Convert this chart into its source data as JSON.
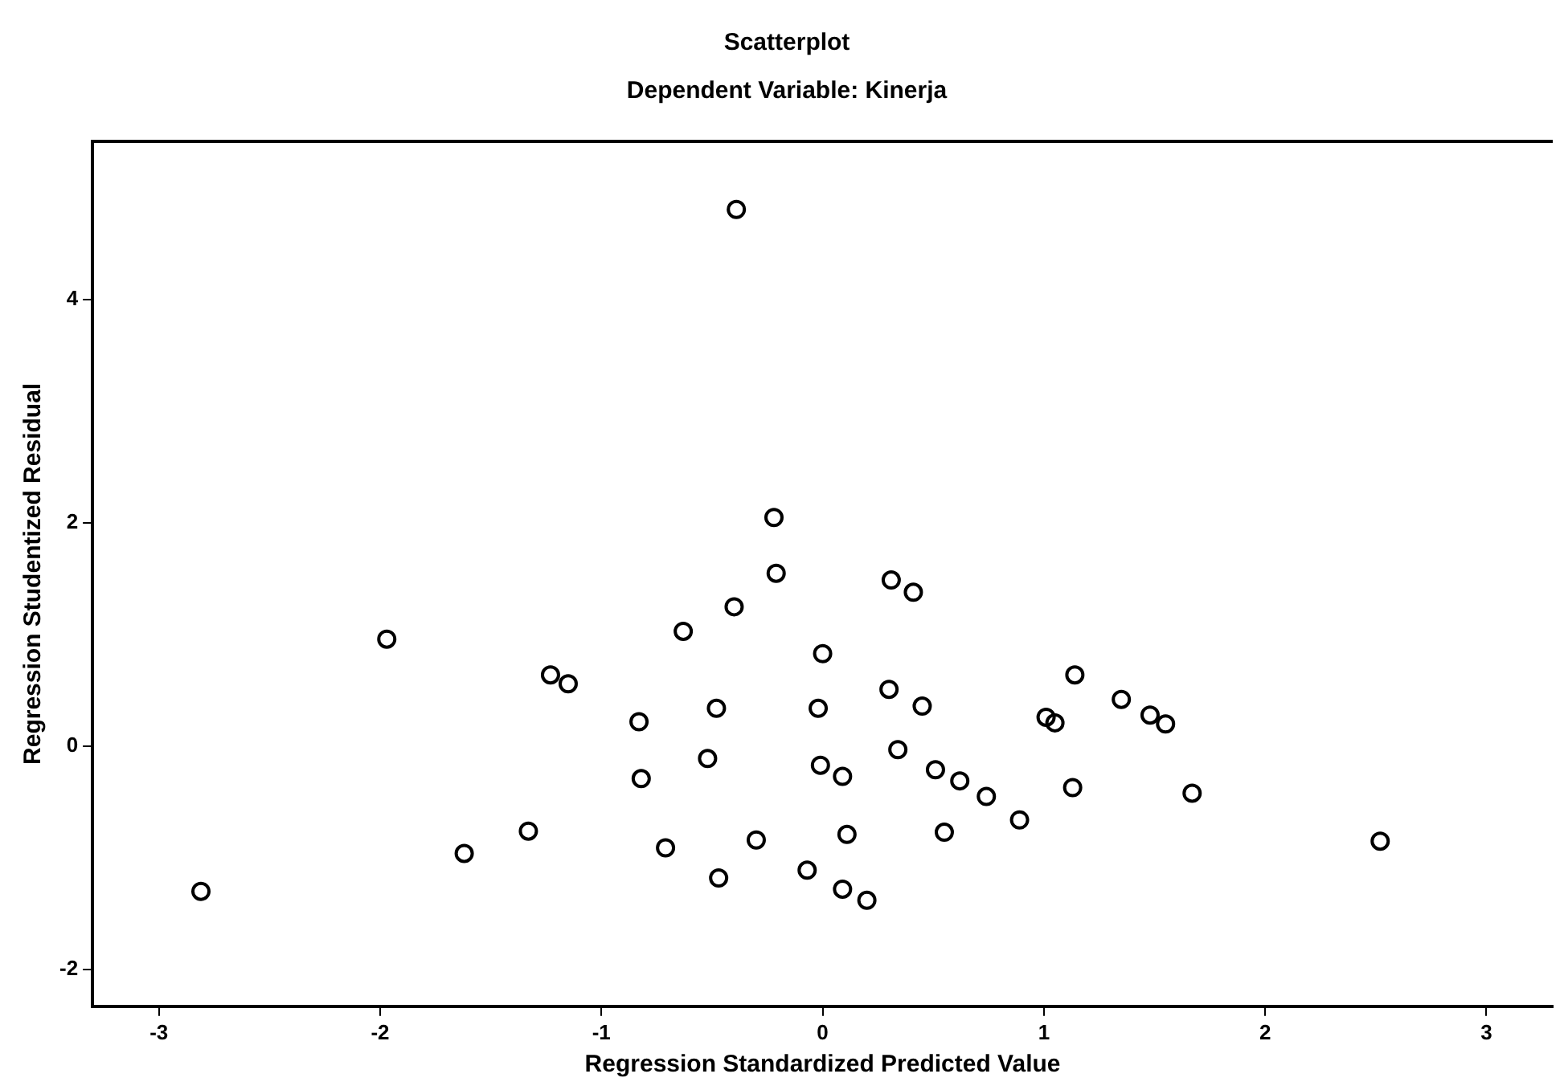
{
  "chart_data": {
    "type": "scatter",
    "title": "Scatterplot",
    "subtitle": "Dependent Variable: Kinerja",
    "xlabel": "Regression Standardized Predicted Value",
    "ylabel": "Regression Studentized Residual",
    "x": [
      -2.81,
      -1.97,
      -1.62,
      -1.33,
      -1.23,
      -1.15,
      -0.83,
      -0.82,
      -0.71,
      -0.63,
      -0.48,
      -0.52,
      -0.47,
      -0.4,
      -0.3,
      -0.21,
      -0.39,
      -0.22,
      0.0,
      0.31,
      0.41,
      -0.02,
      0.3,
      0.45,
      0.34,
      -0.01,
      0.09,
      0.51,
      0.62,
      0.74,
      0.89,
      0.55,
      0.11,
      -0.07,
      0.09,
      0.2,
      1.14,
      1.01,
      1.05,
      1.35,
      1.48,
      1.55,
      1.13,
      1.67,
      2.52
    ],
    "values": [
      -1.3,
      0.96,
      -0.96,
      -0.76,
      0.64,
      0.56,
      0.22,
      -0.29,
      -0.91,
      1.03,
      0.34,
      -0.11,
      -1.18,
      1.25,
      -0.84,
      1.55,
      4.81,
      2.05,
      0.83,
      1.49,
      1.38,
      0.34,
      0.51,
      0.36,
      -0.03,
      -0.17,
      -0.27,
      -0.21,
      -0.31,
      -0.45,
      -0.66,
      -0.77,
      -0.79,
      -1.11,
      -1.28,
      -1.38,
      0.64,
      0.26,
      0.21,
      0.42,
      0.28,
      0.2,
      -0.37,
      -0.42,
      -0.85
    ],
    "color": "#000000",
    "marker": "circle",
    "grid": false,
    "xlim": [
      -3.3,
      3.3
    ],
    "ylim": [
      -2.33,
      5.42
    ],
    "xticks": [
      -3,
      -2,
      -1,
      0,
      1,
      2,
      3
    ],
    "yticks": [
      -2,
      0,
      2,
      4
    ]
  }
}
